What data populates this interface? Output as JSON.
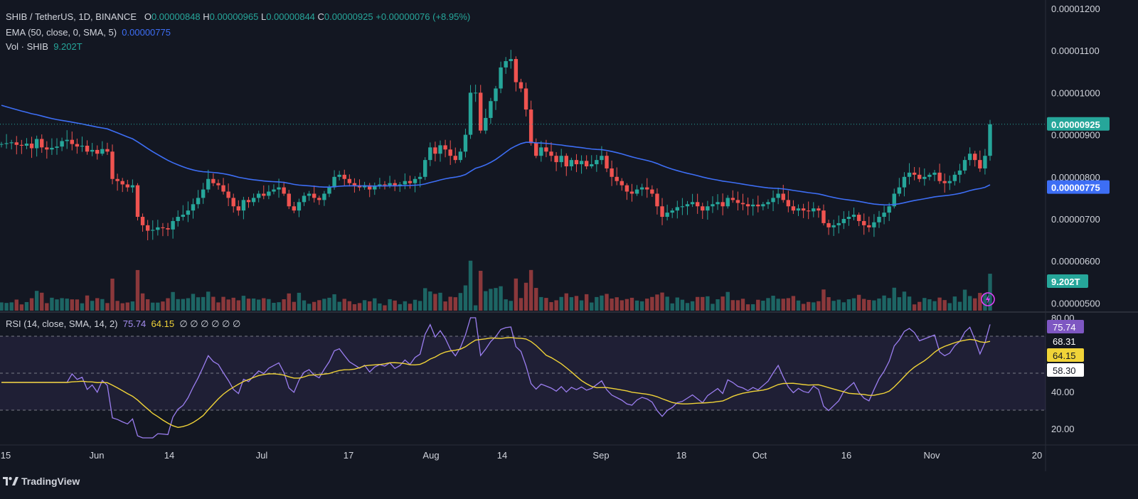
{
  "header": {
    "symbol": "SHIB / TetherUS, 1D, BINANCE",
    "o_label": "O",
    "o_val": "0.00000848",
    "h_label": "H",
    "h_val": "0.00000965",
    "l_label": "L",
    "l_val": "0.00000844",
    "c_label": "C",
    "c_val": "0.00000925",
    "change": "+0.00000076 (+8.95%)"
  },
  "ema_legend": {
    "label": "EMA (50, close, 0, SMA, 5)",
    "value": "0.00000775"
  },
  "vol_legend": {
    "label": "Vol · SHIB",
    "value": "9.202T"
  },
  "rsi_legend": {
    "label": "RSI (14, close, SMA, 14, 2)",
    "rsi": "75.74",
    "ma": "64.15",
    "extra": "∅ ∅ ∅ ∅ ∅ ∅"
  },
  "price_axis": [
    "0.00001200",
    "0.00001100",
    "0.00001000",
    "0.00000900",
    "0.00000800",
    "0.00000700",
    "0.00000600",
    "0.00000500"
  ],
  "price_badges": {
    "last": "0.00000925",
    "ema": "0.00000775",
    "vol": "9.202T"
  },
  "rsi_axis": [
    "80.00",
    "40.00",
    "20.00"
  ],
  "rsi_badges": [
    "75.74",
    "68.31",
    "64.15",
    "58.30"
  ],
  "time_axis": [
    "15",
    "Jun",
    "14",
    "Jul",
    "17",
    "Aug",
    "14",
    "Sep",
    "18",
    "Oct",
    "16",
    "Nov",
    "20"
  ],
  "brand": "TradingView",
  "colors": {
    "bg": "#131722",
    "up": "#26a69a",
    "down": "#ef5350",
    "ema": "#3d6ef5",
    "rsi": "#9b7ef0",
    "rsi_ma": "#f0d338"
  },
  "chart_data": {
    "type": "candlestick",
    "price_range": [
      4.9e-06,
      1.22e-05
    ],
    "rsi_range": [
      12,
      82
    ],
    "rsi_levels": [
      70,
      50,
      30
    ],
    "closes": [
      8.78,
      8.8,
      8.82,
      8.76,
      8.74,
      8.79,
      8.68,
      8.9,
      8.7,
      8.65,
      8.69,
      8.72,
      8.85,
      8.88,
      8.78,
      8.72,
      8.74,
      8.6,
      8.64,
      8.55,
      8.66,
      8.6,
      7.95,
      7.9,
      7.82,
      7.75,
      7.8,
      7.05,
      6.85,
      6.72,
      6.74,
      6.8,
      6.78,
      6.75,
      6.95,
      7.05,
      7.1,
      7.2,
      7.35,
      7.5,
      7.7,
      7.95,
      7.85,
      7.8,
      7.65,
      7.5,
      7.3,
      7.2,
      7.45,
      7.4,
      7.5,
      7.6,
      7.55,
      7.65,
      7.7,
      7.75,
      7.6,
      7.3,
      7.2,
      7.4,
      7.55,
      7.6,
      7.5,
      7.45,
      7.6,
      7.75,
      8.0,
      8.05,
      7.95,
      7.85,
      7.8,
      7.75,
      7.8,
      7.7,
      7.78,
      7.82,
      7.8,
      7.85,
      7.78,
      7.82,
      7.9,
      7.85,
      7.95,
      8.0,
      8.4,
      8.7,
      8.55,
      8.75,
      8.65,
      8.5,
      8.4,
      8.6,
      9.0,
      10.0,
      10.0,
      9.1,
      9.4,
      9.8,
      10.1,
      10.6,
      10.75,
      10.8,
      10.25,
      10.1,
      9.6,
      8.8,
      8.5,
      8.7,
      8.6,
      8.5,
      8.35,
      8.5,
      8.25,
      8.4,
      8.3,
      8.38,
      8.25,
      8.3,
      8.4,
      8.5,
      8.2,
      8.0,
      7.9,
      7.8,
      7.65,
      7.6,
      7.7,
      7.75,
      7.7,
      7.6,
      7.3,
      7.05,
      7.15,
      7.2,
      7.28,
      7.3,
      7.35,
      7.4,
      7.3,
      7.2,
      7.3,
      7.35,
      7.4,
      7.3,
      7.5,
      7.45,
      7.38,
      7.35,
      7.3,
      7.34,
      7.3,
      7.35,
      7.4,
      7.5,
      7.6,
      7.45,
      7.3,
      7.2,
      7.25,
      7.2,
      7.18,
      7.25,
      7.2,
      6.9,
      6.8,
      6.85,
      6.9,
      7.0,
      7.05,
      7.1,
      6.95,
      6.85,
      6.8,
      6.92,
      7.05,
      7.15,
      7.3,
      7.6,
      7.75,
      8.0,
      8.1,
      8.05,
      7.95,
      8.0,
      8.05,
      8.1,
      7.9,
      7.85,
      7.9,
      8.05,
      8.15,
      8.4,
      8.55,
      8.4,
      8.2,
      8.5,
      9.25
    ],
    "opens_note": "",
    "ema_end": 7.75,
    "volume_last": "9.202T"
  }
}
